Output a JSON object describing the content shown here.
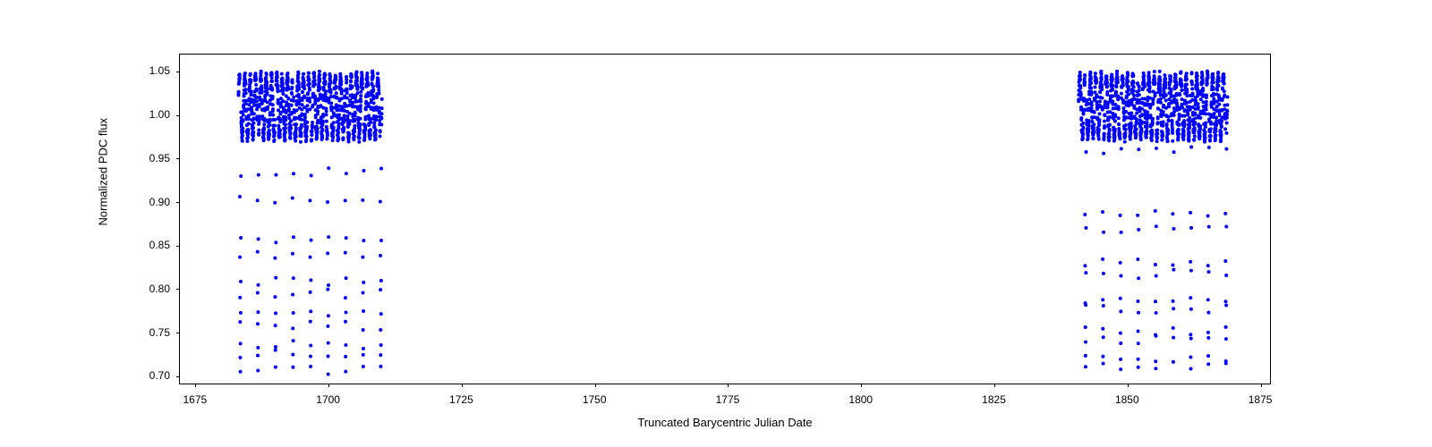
{
  "chart": {
    "type": "scatter",
    "xlabel": "Truncated Barycentric Julian Date",
    "ylabel": "Normalized PDC flux",
    "background_color": "#ffffff",
    "border_color": "#000000",
    "tick_color": "#000000",
    "text_color": "#000000",
    "marker_color": "#0000ff",
    "label_fontsize": 13,
    "tick_fontsize": 12,
    "xlim": [
      1672,
      1877
    ],
    "ylim": [
      0.69,
      1.07
    ],
    "xticks": [
      1675,
      1700,
      1725,
      1750,
      1775,
      1800,
      1825,
      1850,
      1875
    ],
    "yticks": [
      0.7,
      0.75,
      0.8,
      0.85,
      0.9,
      0.95,
      1.0,
      1.05
    ],
    "marker_size": 2,
    "segments": [
      {
        "x_start": 1683,
        "x_end": 1710,
        "eclipse_period": 3.3,
        "eclipse_depth_min": 0.7,
        "baseline_mean": 1.01,
        "baseline_amp": 0.035,
        "baseline_period": 1.0,
        "noise": 0.006,
        "eclipse_width": 0.22
      },
      {
        "x_start": 1841,
        "x_end": 1869,
        "eclipse_period": 3.3,
        "eclipse_depth_min": 0.7,
        "baseline_mean": 1.01,
        "baseline_amp": 0.035,
        "baseline_period": 1.0,
        "noise": 0.006,
        "eclipse_width": 0.22
      }
    ]
  }
}
